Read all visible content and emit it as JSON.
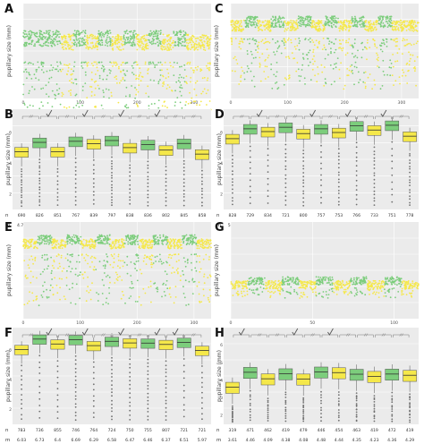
{
  "colors": {
    "green": "#7ccd7c",
    "yellow": "#f5e84a",
    "panel_bg": "#ebebeb",
    "grid": "#ffffff",
    "check": "#555555",
    "outlier": "#707070"
  },
  "chart_data": [
    {
      "panel": "A",
      "type": "scatter",
      "ylabel": "pupillary size (mm)",
      "xticks": [
        "0",
        "100",
        "200",
        "300"
      ],
      "xlim": [
        0,
        330
      ],
      "ylim": [
        2,
        8
      ],
      "band_top": 6.3,
      "band_bottom": 4.3,
      "pattern": "GGGYGYGYGYGYGYY",
      "grid": true
    },
    {
      "panel": "B",
      "type": "box",
      "ylabel": "pupillary size (mm)",
      "yticks": [
        "2",
        "4",
        "6"
      ],
      "ylim": [
        1,
        7.5
      ],
      "colors": [
        "Y",
        "G",
        "Y",
        "G",
        "Y",
        "G",
        "Y",
        "G",
        "Y",
        "G",
        "Y"
      ],
      "medians": [
        4.74,
        5.35,
        4.75,
        5.42,
        5.26,
        5.47,
        5.01,
        5.21,
        4.85,
        5.28,
        4.59
      ],
      "n": [
        "690",
        "826",
        "851",
        "767",
        "839",
        "797",
        "838",
        "836",
        "802",
        "845",
        "858"
      ],
      "m": [
        "4.74",
        "5.35",
        "4.75",
        "5.42",
        "5.26",
        "5.47",
        "5.01",
        "5.21",
        "4.85",
        "5.28",
        "4.59"
      ],
      "checks": [
        2,
        4,
        6,
        8
      ]
    },
    {
      "panel": "C",
      "type": "scatter",
      "ylabel": "pupillary size (mm)",
      "xticks": [
        "0",
        "100",
        "200",
        "300"
      ],
      "xlim": [
        0,
        330
      ],
      "ylim": [
        2,
        8
      ],
      "band_top": 7.2,
      "band_bottom": 5.8,
      "pattern": "YGYGYGYGYGYGYY",
      "grid": true
    },
    {
      "panel": "D",
      "type": "box",
      "ylabel": "pupillary size (mm)",
      "yticks": [
        "2",
        "4",
        "6"
      ],
      "ylim": [
        1,
        7.5
      ],
      "colors": [
        "Y",
        "G",
        "Y",
        "G",
        "Y",
        "G",
        "Y",
        "G",
        "Y",
        "G",
        "Y"
      ],
      "medians": [
        5.59,
        6.23,
        6.05,
        6.33,
        5.92,
        6.23,
        5.99,
        6.42,
        6.15,
        6.46,
        5.75
      ],
      "n": [
        "828",
        "729",
        "834",
        "721",
        "800",
        "757",
        "753",
        "766",
        "733",
        "751",
        "778"
      ],
      "m": [
        "5.59",
        "6.23",
        "6.05",
        "6.33",
        "5.92",
        "6.23",
        "5.99",
        "6.42",
        "6.15",
        "6.46",
        "5.75"
      ],
      "checks": [
        2,
        5,
        7,
        9
      ]
    },
    {
      "panel": "E",
      "type": "scatter",
      "ylabel": "pupillary size (mm)",
      "xticks": [
        "0",
        "100",
        "200",
        "300"
      ],
      "xlim": [
        0,
        330
      ],
      "ylim": [
        2,
        8
      ],
      "band_top": 7.2,
      "band_bottom": 6.0,
      "pattern": "YGYGYGYGYGYGY",
      "grid": true
    },
    {
      "panel": "F",
      "type": "box",
      "ylabel": "pupillary size (mm)",
      "yticks": [
        "2",
        "4",
        "6"
      ],
      "ylim": [
        1,
        7.5
      ],
      "colors": [
        "Y",
        "G",
        "Y",
        "G",
        "Y",
        "G",
        "Y",
        "G",
        "Y",
        "G",
        "Y"
      ],
      "medians": [
        6.03,
        6.73,
        6.4,
        6.69,
        6.29,
        6.58,
        6.47,
        6.46,
        6.37,
        6.51,
        5.97
      ],
      "n": [
        "783",
        "736",
        "855",
        "746",
        "764",
        "724",
        "750",
        "755",
        "807",
        "721",
        "721"
      ],
      "m": [
        "6.03",
        "6.73",
        "6.4",
        "6.69",
        "6.29",
        "6.58",
        "6.47",
        "6.46",
        "6.37",
        "6.51",
        "5.97"
      ],
      "checks": [
        2,
        4,
        6,
        8,
        9
      ]
    },
    {
      "panel": "G",
      "type": "scatter",
      "ylabel": "pupillary size (mm)",
      "xticks": [
        "0",
        "50",
        "100"
      ],
      "xlim": [
        0,
        115
      ],
      "ylim": [
        2,
        8
      ],
      "band_top": 4.6,
      "band_bottom": 3.6,
      "pattern": "YGYGYGYGYGY",
      "grid": true
    },
    {
      "panel": "H",
      "type": "box",
      "ylabel": "pupillary size (mm)",
      "yticks": [
        "2",
        "3",
        "4",
        "5",
        "6"
      ],
      "ylim": [
        1.5,
        7
      ],
      "colors": [
        "Y",
        "G",
        "Y",
        "G",
        "Y",
        "G",
        "Y",
        "G",
        "Y",
        "G",
        "Y"
      ],
      "medians": [
        3.61,
        4.46,
        4.09,
        4.38,
        4.08,
        4.48,
        4.44,
        4.35,
        4.23,
        4.36,
        4.29
      ],
      "n": [
        "319",
        "471",
        "462",
        "419",
        "479",
        "446",
        "454",
        "463",
        "419",
        "472",
        "419"
      ],
      "m": [
        "3.61",
        "4.46",
        "4.09",
        "4.38",
        "4.08",
        "4.48",
        "4.44",
        "4.35",
        "4.23",
        "4.36",
        "4.29"
      ],
      "checks": [
        1,
        4,
        6
      ]
    }
  ],
  "table_row_labels": {
    "n": "n",
    "m": "m"
  }
}
